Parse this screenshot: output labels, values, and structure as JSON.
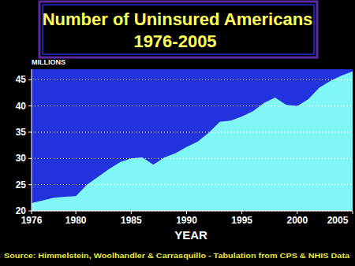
{
  "chart_data": {
    "type": "area",
    "title": "Number of Uninsured Americans",
    "subtitle": "1976-2005",
    "y_label": "MILLIONS",
    "x_label": "YEAR",
    "source": "Source: Himmelstein, Woolhandler & Carrasquillo - Tabulation from CPS & NHIS Data",
    "x": [
      1976,
      1977,
      1978,
      1979,
      1980,
      1981,
      1982,
      1983,
      1984,
      1985,
      1986,
      1987,
      1988,
      1989,
      1990,
      1991,
      1992,
      1993,
      1994,
      1995,
      1996,
      1997,
      1998,
      1999,
      2000,
      2001,
      2002,
      2003,
      2004,
      2005
    ],
    "values": [
      21.5,
      22,
      22.5,
      22.7,
      22.8,
      25,
      26.5,
      28,
      29.3,
      30,
      30.2,
      28.8,
      30.2,
      31,
      32.2,
      33.2,
      34.9,
      37,
      37.2,
      38,
      39,
      40.6,
      41.6,
      40.2,
      40,
      41.3,
      43.5,
      44.8,
      45.8,
      46.6
    ],
    "color": "#80f6f6",
    "xlim": [
      1976,
      2005
    ],
    "xticks": [
      1976,
      1980,
      1985,
      1990,
      1995,
      2000,
      2005
    ],
    "ylim": [
      20,
      47
    ],
    "yticks": [
      20,
      25,
      30,
      35,
      40,
      45
    ],
    "grid": true
  }
}
